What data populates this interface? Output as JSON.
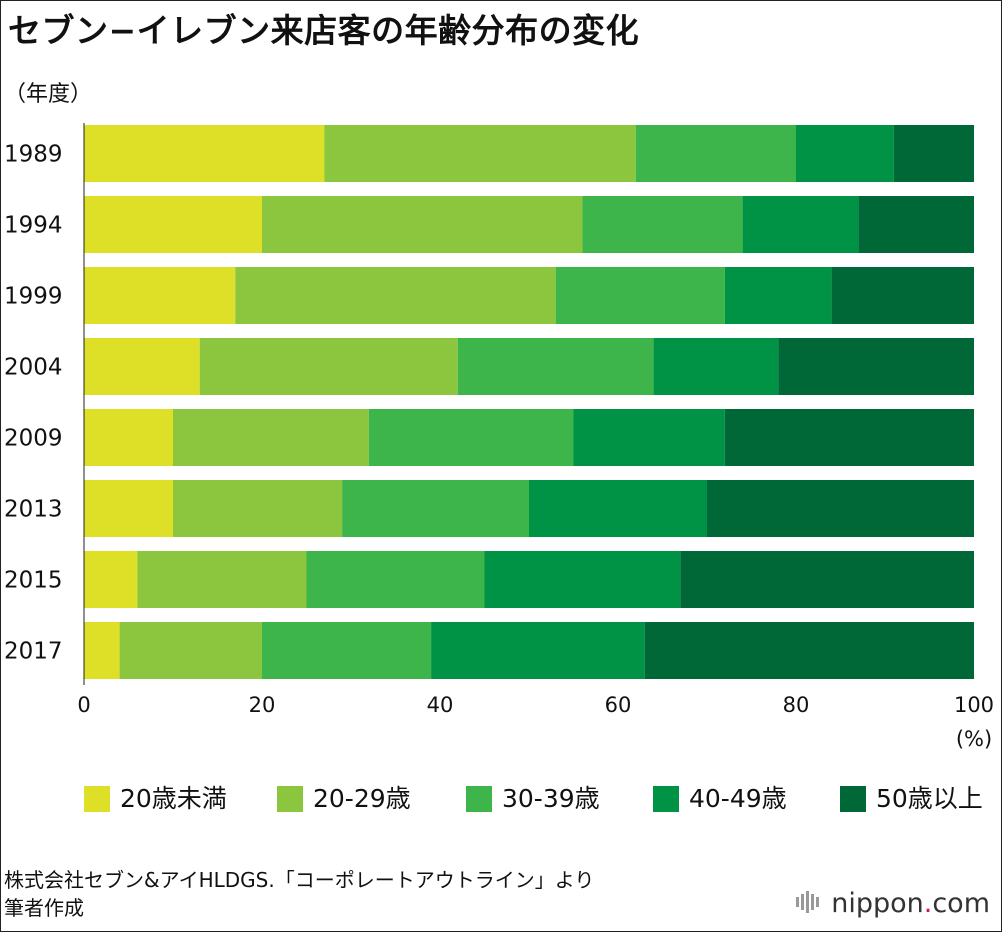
{
  "title": "セブン−イレブン来店客の年齢分布の変化",
  "unit_label": "（年度）",
  "percent_label": "(%)",
  "source_lines": [
    "株式会社セブン&アイHLDGS.「コーポレートアウトライン」より",
    "筆者作成"
  ],
  "brand": {
    "name": "nippon",
    "dot": ".",
    "suffix": "com"
  },
  "chart_data": {
    "type": "bar",
    "orientation": "horizontal",
    "stacked": true,
    "title": "セブン−イレブン来店客の年齢分布の変化",
    "xlabel": "(%)",
    "ylabel": "（年度）",
    "xlim": [
      0,
      100
    ],
    "x_ticks": [
      0,
      20,
      40,
      60,
      80,
      100
    ],
    "categories": [
      "1989",
      "1994",
      "1999",
      "2004",
      "2009",
      "2013",
      "2015",
      "2017"
    ],
    "series": [
      {
        "name": "20歳未満",
        "color": "#dde026",
        "values": [
          27,
          20,
          17,
          13,
          10,
          10,
          6,
          4
        ]
      },
      {
        "name": "20-29歳",
        "color": "#8cc63f",
        "values": [
          35,
          36,
          36,
          29,
          22,
          19,
          19,
          16
        ]
      },
      {
        "name": "30-39歳",
        "color": "#3db54a",
        "values": [
          18,
          18,
          19,
          22,
          23,
          21,
          20,
          19
        ]
      },
      {
        "name": "40-49歳",
        "color": "#009245",
        "values": [
          11,
          13,
          12,
          14,
          17,
          20,
          22,
          24
        ]
      },
      {
        "name": "50歳以上",
        "color": "#006837",
        "values": [
          9,
          13,
          16,
          22,
          28,
          30,
          33,
          37
        ]
      }
    ],
    "legend_position": "bottom"
  }
}
